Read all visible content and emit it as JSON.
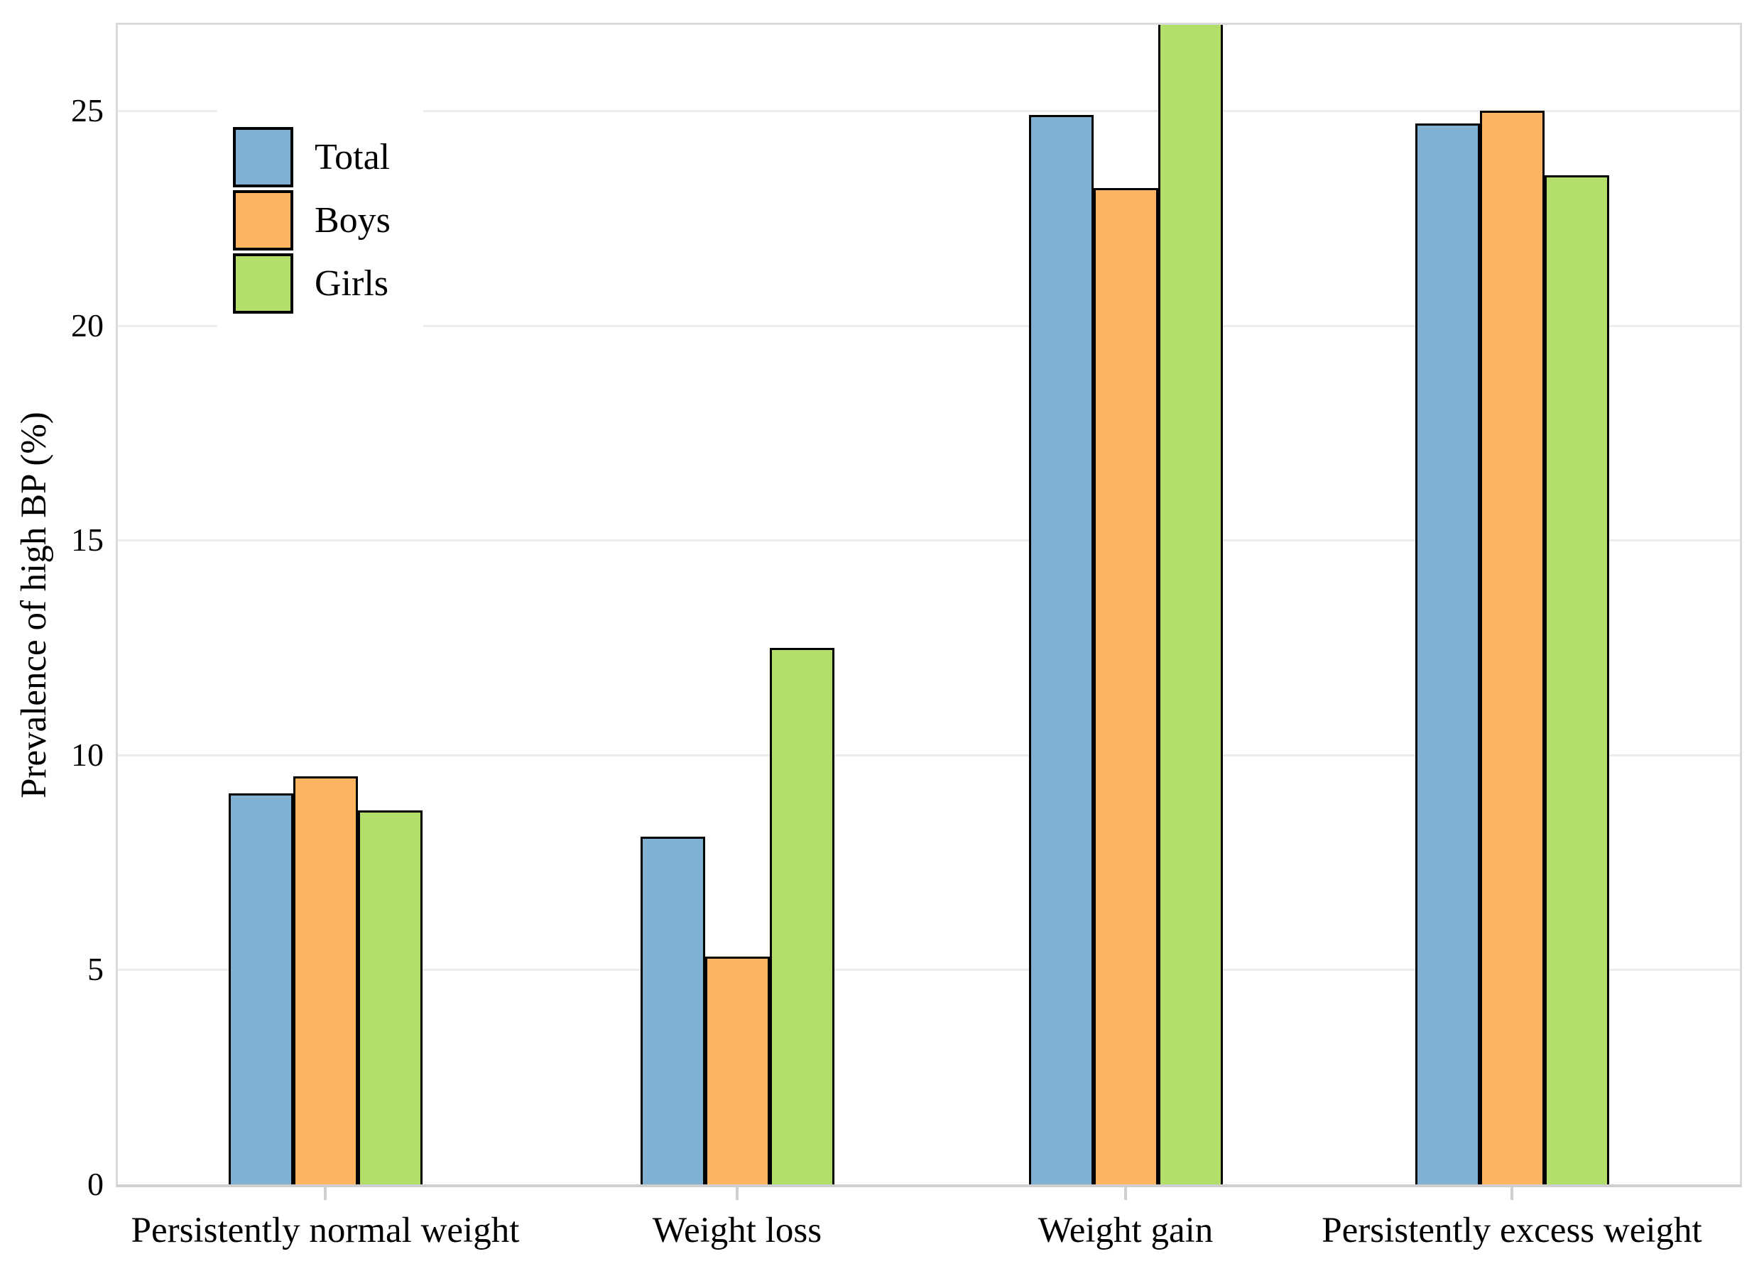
{
  "figure": {
    "kind": "grouped bar chart",
    "background": "#ffffff",
    "frame_color": "#dadada",
    "gridline_color": "#ececec",
    "bar_border_color": "#000000",
    "text_color": "#000000"
  },
  "legend": {
    "position": "top-left inside plot",
    "items": [
      {
        "label": "Total",
        "color": "#80B1D3"
      },
      {
        "label": "Boys",
        "color": "#FDB462"
      },
      {
        "label": "Girls",
        "color": "#B3DE69"
      }
    ]
  },
  "chart_data": {
    "type": "bar",
    "title": "",
    "xlabel": "",
    "ylabel": "Prevalence of high BP (%)",
    "categories": [
      "Persistently normal weight",
      "Weight loss",
      "Weight gain",
      "Persistently excess weight"
    ],
    "series": [
      {
        "name": "Total",
        "color": "#80B1D3",
        "values": [
          9.1,
          8.1,
          24.9,
          24.7
        ]
      },
      {
        "name": "Boys",
        "color": "#FDB462",
        "values": [
          9.5,
          5.3,
          23.2,
          25.0
        ]
      },
      {
        "name": "Girls",
        "color": "#B3DE69",
        "values": [
          8.7,
          12.5,
          27.1,
          23.5
        ]
      }
    ],
    "ylim": [
      0,
      27
    ],
    "yticks": [
      0,
      5,
      10,
      15,
      20,
      25
    ],
    "grid": "horizontal major gridlines on",
    "legend_position": "upper left, inside panel, white background",
    "notes": "Girls bar in the Weight gain group exceeds the y-axis maximum and is clipped flat at the top of the panel (~27%). Bars have black outlines; panel has a light gray frame; serif (Times-like) typography."
  }
}
